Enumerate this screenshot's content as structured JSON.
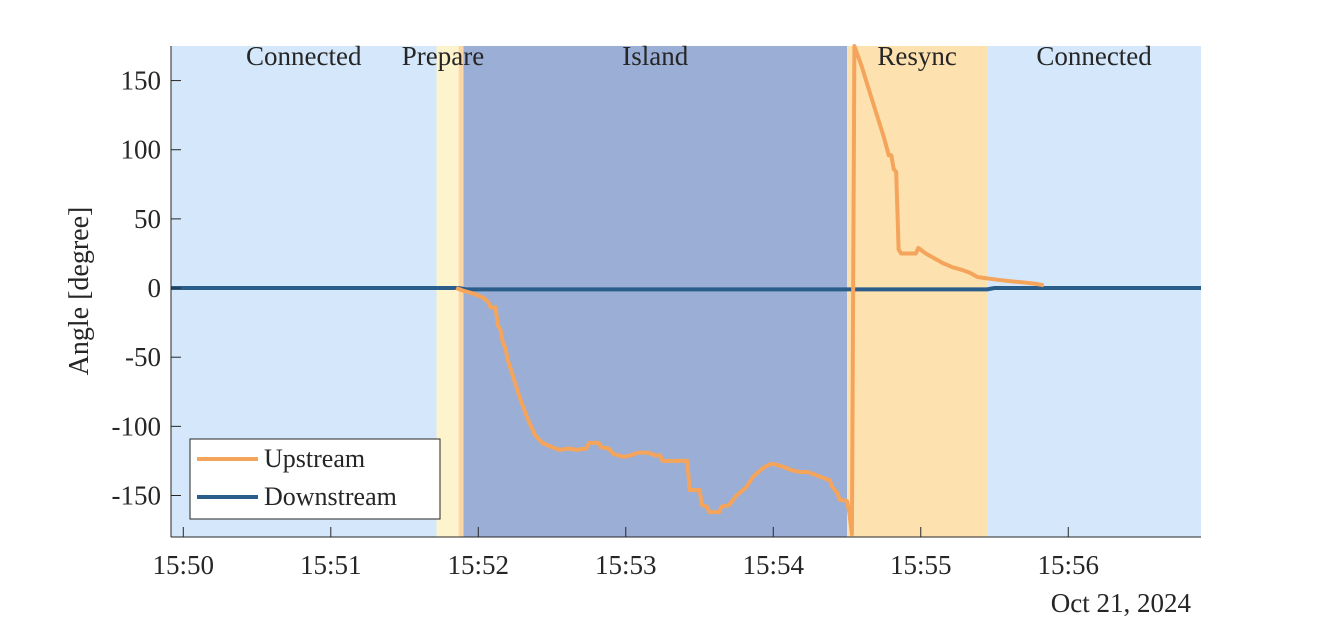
{
  "chart_data": {
    "type": "line",
    "ylabel": "Angle [degree]",
    "xlabel": "",
    "date_label": "Oct 21, 2024",
    "ylim": [
      -180,
      175
    ],
    "xlim": [
      "15:49:55",
      "15:56:54"
    ],
    "x_ticks": [
      "15:50",
      "15:51",
      "15:52",
      "15:53",
      "15:54",
      "15:55",
      "15:56"
    ],
    "y_ticks": [
      150,
      100,
      50,
      0,
      -50,
      -100,
      -150
    ],
    "y_tick_labels": [
      "150",
      "100",
      "50",
      "0",
      "-50",
      "-100",
      "-150"
    ],
    "phases": [
      {
        "label": "Connected",
        "start": "15:49:55",
        "end": "15:51:43",
        "color": "#d5e8fb"
      },
      {
        "label": "Prepare",
        "start": "15:51:43",
        "end": "15:51:52",
        "color": "#fdf3cc"
      },
      {
        "label": "",
        "start": "15:51:52",
        "end": "15:51:54",
        "color": "#fbd6a6"
      },
      {
        "label": "Island",
        "start": "15:51:54",
        "end": "15:54:30",
        "color": "#9aaed6"
      },
      {
        "label": "Resync",
        "start": "15:54:30",
        "end": "15:55:27",
        "color": "#fde2b0"
      },
      {
        "label": "Connected",
        "start": "15:55:27",
        "end": "15:56:54",
        "color": "#d5e8fb"
      }
    ],
    "legend": {
      "position": "bottom-left"
    },
    "series": [
      {
        "name": "Upstream",
        "color": "#f5a45c",
        "points": [
          [
            "15:51:51",
            0
          ],
          [
            "15:51:54",
            -2
          ],
          [
            "15:51:58",
            -4
          ],
          [
            "15:52:02",
            -7
          ],
          [
            "15:52:04",
            -10
          ],
          [
            "15:52:05",
            -14
          ],
          [
            "15:52:07",
            -14
          ],
          [
            "15:52:08",
            -27
          ],
          [
            "15:52:09",
            -30
          ],
          [
            "15:52:10",
            -40
          ],
          [
            "15:52:11",
            -43
          ],
          [
            "15:52:12",
            -52
          ],
          [
            "15:52:14",
            -63
          ],
          [
            "15:52:17",
            -80
          ],
          [
            "15:52:20",
            -94
          ],
          [
            "15:52:23",
            -106
          ],
          [
            "15:52:26",
            -112
          ],
          [
            "15:52:30",
            -115
          ],
          [
            "15:52:33",
            -117
          ],
          [
            "15:52:37",
            -116
          ],
          [
            "15:52:40",
            -117
          ],
          [
            "15:52:44",
            -116
          ],
          [
            "15:52:45",
            -112
          ],
          [
            "15:52:49",
            -112
          ],
          [
            "15:52:50",
            -115
          ],
          [
            "15:52:53",
            -116
          ],
          [
            "15:52:55",
            -120
          ],
          [
            "15:52:59",
            -122
          ],
          [
            "15:53:02",
            -121
          ],
          [
            "15:53:05",
            -119
          ],
          [
            "15:53:09",
            -119
          ],
          [
            "15:53:12",
            -121
          ],
          [
            "15:53:14",
            -121
          ],
          [
            "15:53:15",
            -125
          ],
          [
            "15:53:25",
            -125
          ],
          [
            "15:53:26",
            -146
          ],
          [
            "15:53:30",
            -146
          ],
          [
            "15:53:31",
            -157
          ],
          [
            "15:53:33",
            -158
          ],
          [
            "15:53:34",
            -162
          ],
          [
            "15:53:38",
            -162
          ],
          [
            "15:53:39",
            -158
          ],
          [
            "15:53:42",
            -157
          ],
          [
            "15:53:45",
            -150
          ],
          [
            "15:53:49",
            -144
          ],
          [
            "15:53:52",
            -136
          ],
          [
            "15:53:56",
            -130
          ],
          [
            "15:53:59",
            -127
          ],
          [
            "15:54:02",
            -128
          ],
          [
            "15:54:05",
            -130
          ],
          [
            "15:54:08",
            -132
          ],
          [
            "15:54:11",
            -133
          ],
          [
            "15:54:14",
            -133
          ],
          [
            "15:54:17",
            -135
          ],
          [
            "15:54:20",
            -137
          ],
          [
            "15:54:23",
            -139
          ],
          [
            "15:54:24",
            -144
          ],
          [
            "15:54:26",
            -148
          ],
          [
            "15:54:27",
            -153
          ],
          [
            "15:54:30",
            -154
          ],
          [
            "15:54:31",
            -163
          ],
          [
            "15:54:32",
            -178
          ],
          [
            "15:54:33",
            175
          ],
          [
            "15:54:36",
            160
          ],
          [
            "15:54:39",
            143
          ],
          [
            "15:54:42",
            126
          ],
          [
            "15:54:45",
            109
          ],
          [
            "15:54:47",
            96
          ],
          [
            "15:54:48",
            96
          ],
          [
            "15:54:49",
            86
          ],
          [
            "15:54:50",
            84
          ],
          [
            "15:54:51",
            28
          ],
          [
            "15:54:52",
            25
          ],
          [
            "15:54:58",
            25
          ],
          [
            "15:54:59",
            29
          ],
          [
            "15:55:02",
            25
          ],
          [
            "15:55:06",
            21
          ],
          [
            "15:55:09",
            18
          ],
          [
            "15:55:13",
            15
          ],
          [
            "15:55:17",
            13
          ],
          [
            "15:55:20",
            11
          ],
          [
            "15:55:23",
            8
          ],
          [
            "15:55:27",
            7
          ],
          [
            "15:55:31",
            6
          ],
          [
            "15:55:36",
            5
          ],
          [
            "15:55:42",
            4
          ],
          [
            "15:55:47",
            3
          ],
          [
            "15:55:50",
            2
          ]
        ]
      },
      {
        "name": "Downstream",
        "color": "#2b5d8a",
        "points": [
          [
            "15:49:55",
            0
          ],
          [
            "15:51:52",
            0
          ],
          [
            "15:51:55",
            -1
          ],
          [
            "15:54:30",
            -1
          ],
          [
            "15:55:27",
            -1
          ],
          [
            "15:55:30",
            0
          ],
          [
            "15:56:54",
            0
          ]
        ]
      }
    ]
  }
}
